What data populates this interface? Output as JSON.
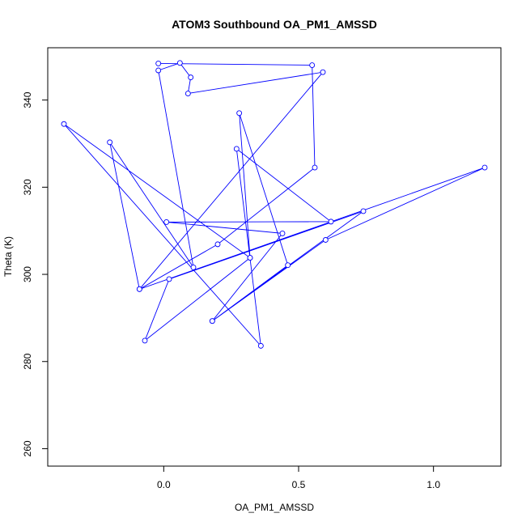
{
  "chart_data": {
    "type": "line",
    "title": "ATOM3 Southbound OA_PM1_AMSSD",
    "xlabel": "OA_PM1_AMSSD",
    "ylabel": "Theta (K)",
    "xlim": [
      -0.43,
      1.25
    ],
    "ylim": [
      256,
      352
    ],
    "x_ticks": [
      0.0,
      0.5,
      1.0
    ],
    "x_tick_labels": [
      "0.0",
      "0.5",
      "1.0"
    ],
    "y_ticks": [
      260,
      280,
      300,
      320,
      340
    ],
    "y_tick_labels": [
      "260",
      "280",
      "300",
      "320",
      "340"
    ],
    "grid": false,
    "series_color": "#0000ff",
    "markers": "open-circle",
    "series": [
      {
        "x": [
          0.32,
          -0.07,
          0.02,
          0.74,
          0.18,
          0.46,
          0.28,
          0.32,
          -0.37,
          0.36,
          0.27,
          0.62,
          0.01,
          0.44,
          0.18,
          0.6,
          1.19,
          -0.09,
          0.59,
          0.09,
          0.1,
          0.06,
          -0.02,
          0.11,
          -0.2,
          -0.09,
          0.2,
          0.56,
          0.55,
          -0.02
        ],
        "y": [
          303.8,
          284.8,
          298.9,
          314.5,
          289.3,
          302.1,
          337.0,
          303.8,
          334.5,
          283.6,
          328.8,
          312.1,
          312.0,
          309.4,
          289.3,
          307.9,
          324.5,
          296.6,
          346.4,
          341.5,
          345.2,
          348.5,
          346.8,
          301.6,
          330.3,
          296.6,
          306.9,
          324.5,
          348.0,
          348.4
        ]
      }
    ]
  }
}
